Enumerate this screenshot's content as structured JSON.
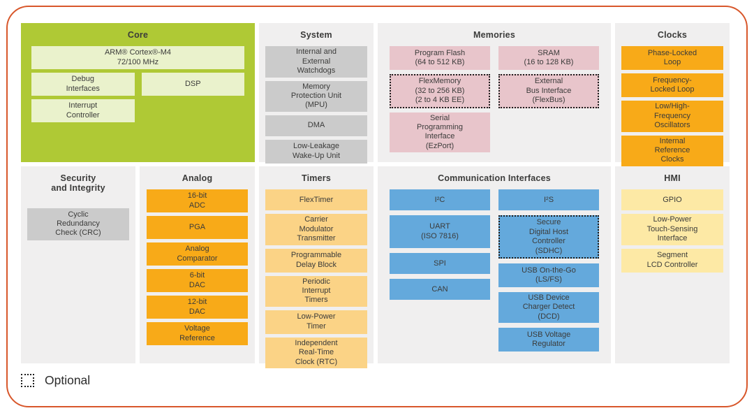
{
  "palette": {
    "frame_border": "#d8572b",
    "panel_bg": "#f0efef",
    "core_bg": "#afc935",
    "core_block": "#eaf2cc",
    "gray_block": "#cbcbcb",
    "pink_block": "#e8c5cb",
    "orange_block": "#f8aa18",
    "light_orange_block": "#fbd386",
    "yellow_block": "#fde9a5",
    "blue_block": "#64a9dc",
    "text": "#3b3b3a"
  },
  "sections": {
    "core": {
      "title": "Core",
      "blocks": [
        {
          "label": "ARM® Cortex®-M4\n72/100 MHz"
        },
        {
          "label": "Debug\nInterfaces"
        },
        {
          "label": "DSP"
        },
        {
          "label": "Interrupt\nController"
        }
      ]
    },
    "system": {
      "title": "System",
      "blocks": [
        {
          "label": "Internal and\nExternal\nWatchdogs"
        },
        {
          "label": "Memory\nProtection Unit\n(MPU)"
        },
        {
          "label": "DMA"
        },
        {
          "label": "Low-Leakage\nWake-Up Unit"
        }
      ]
    },
    "memories": {
      "title": "Memories",
      "left": [
        {
          "label": "Program Flash\n(64 to 512 KB)"
        },
        {
          "label": "FlexMemory\n(32 to 256 KB)\n(2 to 4 KB EE)",
          "optional": true
        },
        {
          "label": "Serial\nProgramming\nInterface\n(EzPort)"
        }
      ],
      "right": [
        {
          "label": "SRAM\n(16 to 128 KB)"
        },
        {
          "label": "External\nBus Interface\n(FlexBus)",
          "optional": true
        }
      ]
    },
    "clocks": {
      "title": "Clocks",
      "blocks": [
        {
          "label": "Phase-Locked\nLoop"
        },
        {
          "label": "Frequency-\nLocked Loop"
        },
        {
          "label": "Low/High-\nFrequency\nOscillators"
        },
        {
          "label": "Internal\nReference\nClocks"
        }
      ]
    },
    "security": {
      "title": "Security\nand Integrity",
      "blocks": [
        {
          "label": "Cyclic\nRedundancy\nCheck (CRC)"
        }
      ]
    },
    "analog": {
      "title": "Analog",
      "blocks": [
        {
          "label": "16-bit\nADC"
        },
        {
          "label": "PGA"
        },
        {
          "label": "Analog\nComparator"
        },
        {
          "label": "6-bit\nDAC"
        },
        {
          "label": "12-bit\nDAC"
        },
        {
          "label": "Voltage\nReference"
        }
      ]
    },
    "timers": {
      "title": "Timers",
      "blocks": [
        {
          "label": "FlexTimer"
        },
        {
          "label": "Carrier\nModulator\nTransmitter"
        },
        {
          "label": "Programmable\nDelay Block"
        },
        {
          "label": "Periodic\nInterrupt\nTimers"
        },
        {
          "label": "Low-Power\nTimer"
        },
        {
          "label": "Independent\nReal-Time\nClock (RTC)"
        }
      ]
    },
    "comm": {
      "title": "Communication Interfaces",
      "left": [
        {
          "label": "I²C"
        },
        {
          "label": "UART\n(ISO 7816)"
        },
        {
          "label": "SPI"
        },
        {
          "label": "CAN"
        }
      ],
      "right": [
        {
          "label": "I²S"
        },
        {
          "label": "Secure\nDigital Host\nController\n(SDHC)",
          "optional": true
        },
        {
          "label": "USB On-the-Go\n(LS/FS)"
        },
        {
          "label": "USB Device\nCharger Detect\n(DCD)"
        },
        {
          "label": "USB Voltage\nRegulator"
        }
      ]
    },
    "hmi": {
      "title": "HMI",
      "blocks": [
        {
          "label": "GPIO"
        },
        {
          "label": "Low-Power\nTouch-Sensing\nInterface"
        },
        {
          "label": "Segment\nLCD Controller"
        }
      ]
    }
  },
  "legend": {
    "label": "Optional"
  }
}
